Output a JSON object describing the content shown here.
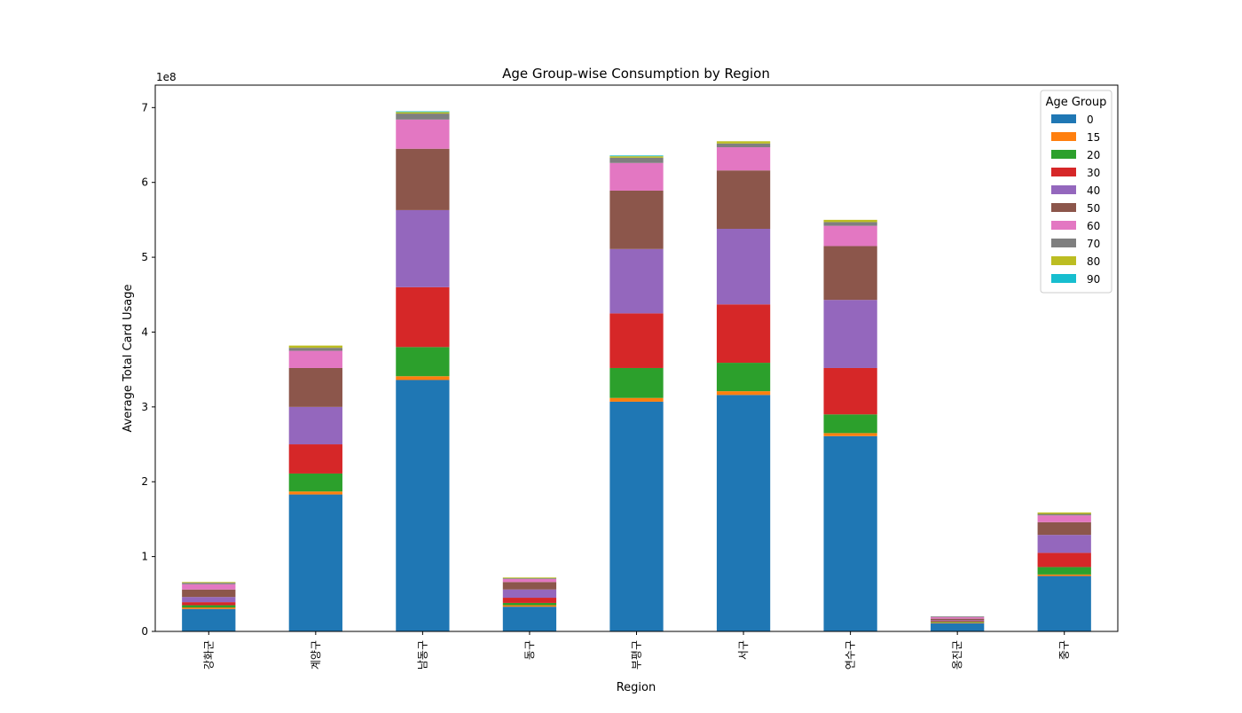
{
  "chart_data": {
    "type": "bar",
    "stacked": true,
    "title": "Age Group-wise Consumption by Region",
    "xlabel": "Region",
    "ylabel": "Average Total Card Usage",
    "y_scale_label": "1e8",
    "ylim": [
      0,
      7.3
    ],
    "y_ticks": [
      0,
      1,
      2,
      3,
      4,
      5,
      6,
      7
    ],
    "y_tick_labels": [
      "0",
      "1",
      "2",
      "3",
      "4",
      "5",
      "6",
      "7"
    ],
    "grid": false,
    "legend": {
      "title": "Age Group",
      "placement": "top-right"
    },
    "categories": [
      "강화군",
      "계양구",
      "남동구",
      "동구",
      "부평구",
      "서구",
      "연수구",
      "옹진군",
      "중구"
    ],
    "series": [
      {
        "name": "0",
        "color": "#1f77b4",
        "values": [
          0.3,
          1.83,
          3.36,
          0.33,
          3.07,
          3.16,
          2.61,
          0.11,
          0.74
        ]
      },
      {
        "name": "15",
        "color": "#ff7f0e",
        "values": [
          0.02,
          0.04,
          0.05,
          0.02,
          0.05,
          0.05,
          0.04,
          0.01,
          0.02
        ]
      },
      {
        "name": "20",
        "color": "#2ca02c",
        "values": [
          0.03,
          0.24,
          0.39,
          0.03,
          0.4,
          0.38,
          0.25,
          0.01,
          0.1
        ]
      },
      {
        "name": "30",
        "color": "#d62728",
        "values": [
          0.04,
          0.39,
          0.8,
          0.07,
          0.73,
          0.78,
          0.62,
          0.01,
          0.19
        ]
      },
      {
        "name": "40",
        "color": "#9467bd",
        "values": [
          0.07,
          0.5,
          1.03,
          0.11,
          0.86,
          1.01,
          0.91,
          0.01,
          0.24
        ]
      },
      {
        "name": "50",
        "color": "#8c564b",
        "values": [
          0.1,
          0.52,
          0.82,
          0.1,
          0.78,
          0.78,
          0.72,
          0.02,
          0.17
        ]
      },
      {
        "name": "60",
        "color": "#e377c2",
        "values": [
          0.07,
          0.23,
          0.39,
          0.04,
          0.37,
          0.31,
          0.27,
          0.02,
          0.09
        ]
      },
      {
        "name": "70",
        "color": "#7f7f7f",
        "values": [
          0.02,
          0.04,
          0.08,
          0.01,
          0.07,
          0.05,
          0.05,
          0.01,
          0.02
        ]
      },
      {
        "name": "80",
        "color": "#bcbd22",
        "values": [
          0.01,
          0.03,
          0.02,
          0.01,
          0.02,
          0.03,
          0.03,
          0.0,
          0.02
        ]
      },
      {
        "name": "90",
        "color": "#17becf",
        "values": [
          0.0,
          0.0,
          0.01,
          0.0,
          0.01,
          0.0,
          0.0,
          0.0,
          0.0
        ]
      }
    ]
  }
}
